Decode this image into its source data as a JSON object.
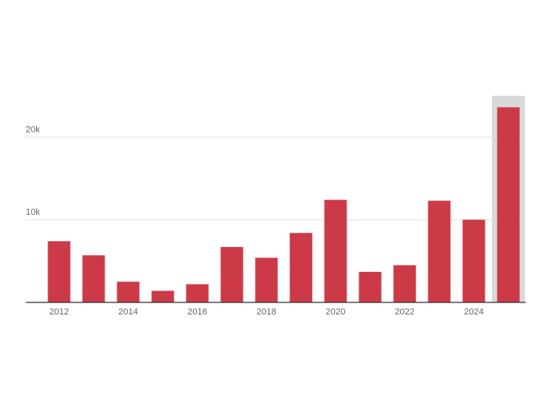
{
  "chart_data": {
    "type": "bar",
    "categories": [
      "2012",
      null,
      "2014",
      null,
      "2016",
      null,
      "2018",
      null,
      "2020",
      null,
      "2022",
      null,
      "2024",
      null
    ],
    "values": [
      7400,
      5700,
      2500,
      1400,
      2200,
      6700,
      5400,
      8400,
      12400,
      3700,
      4500,
      12300,
      10000,
      23600
    ],
    "color": "#cc3a47",
    "ylim": [
      0,
      25000
    ],
    "yticks": [
      {
        "value": 10000,
        "label": "10k"
      },
      {
        "value": 20000,
        "label": "20k"
      }
    ],
    "grid": true
  }
}
